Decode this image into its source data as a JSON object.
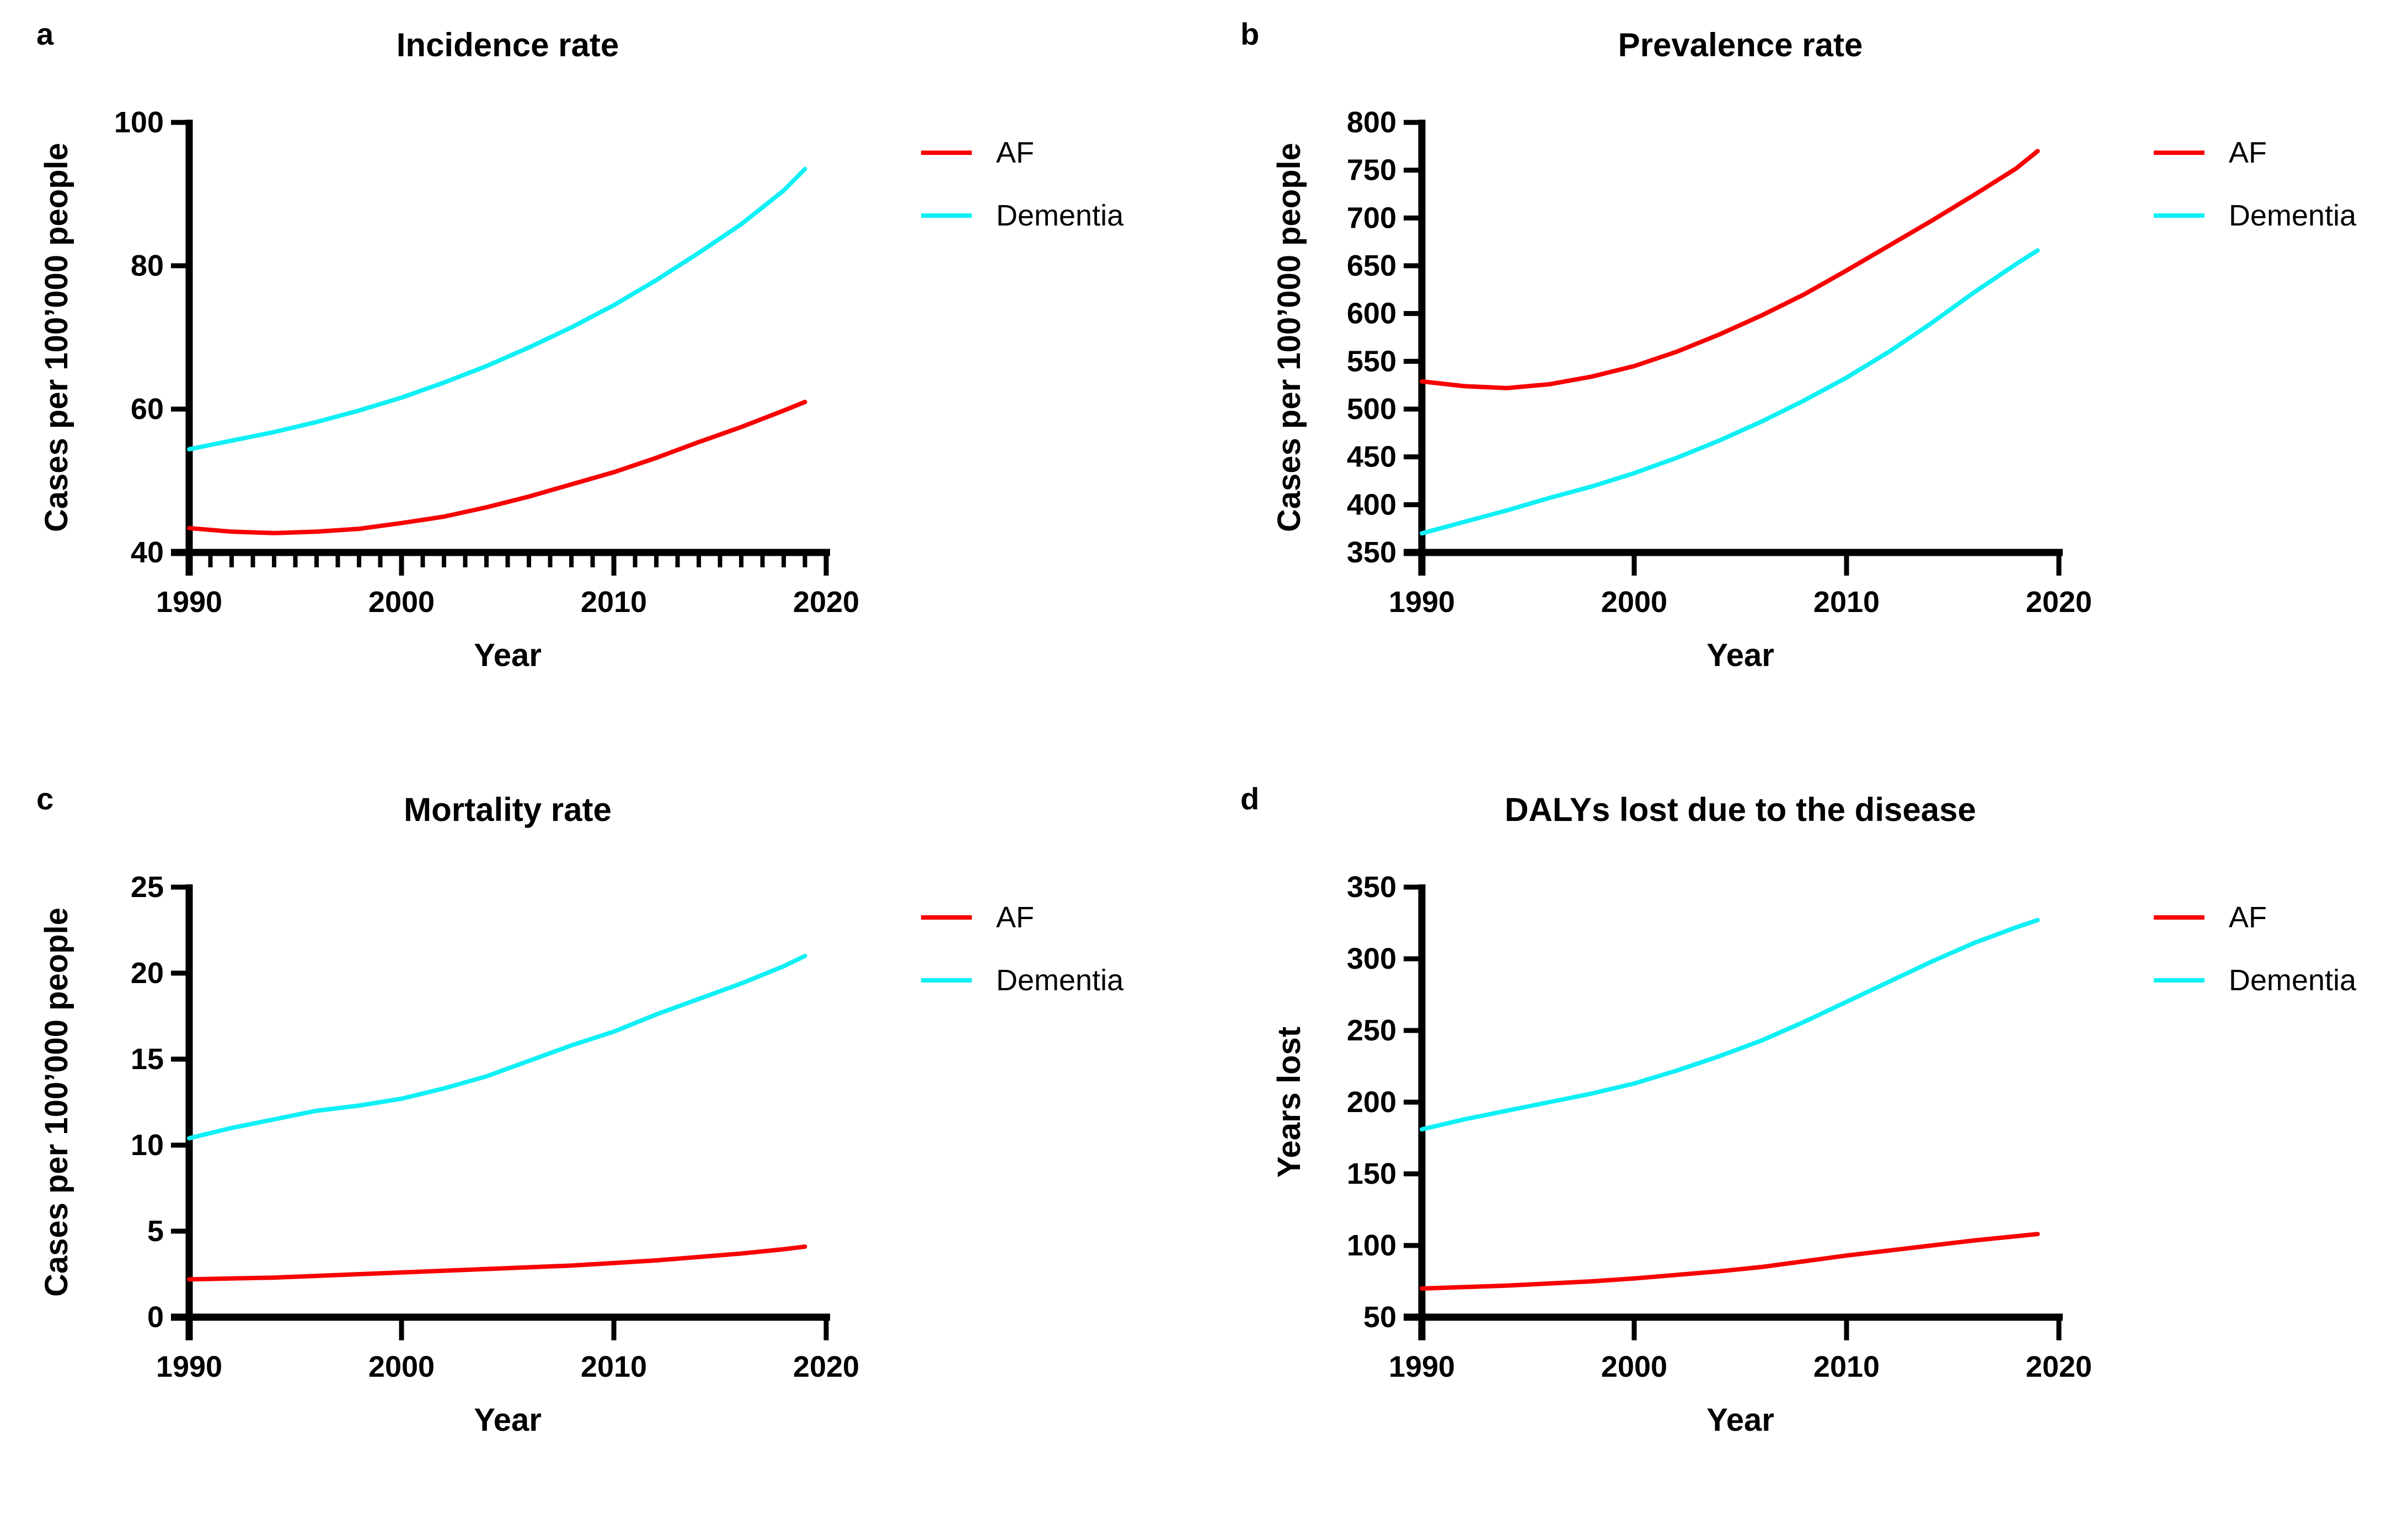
{
  "colors": {
    "af": "#f80000",
    "dementia": "#0ff0f5",
    "axis": "#000000",
    "text": "#000000",
    "background": "#ffffff"
  },
  "chart_data": [
    {
      "type": "line",
      "panel_label": "a",
      "title": "Incidence rate",
      "xlabel": "Year",
      "ylabel": "Cases per 100’000 people",
      "xlim": [
        1990,
        2020
      ],
      "ylim": [
        40,
        100
      ],
      "x_ticks": [
        1990,
        2000,
        2010,
        2020
      ],
      "y_ticks": [
        40,
        60,
        80,
        100
      ],
      "x_minor_tick_interval": 1,
      "grid": false,
      "legend_position": "right",
      "x": [
        1990,
        1992,
        1994,
        1996,
        1998,
        2000,
        2002,
        2004,
        2006,
        2008,
        2010,
        2012,
        2014,
        2016,
        2018,
        2019
      ],
      "series": [
        {
          "name": "AF",
          "color": "#f80000",
          "values": [
            43.4,
            42.9,
            42.7,
            42.9,
            43.3,
            44.1,
            45.0,
            46.3,
            47.8,
            49.5,
            51.2,
            53.2,
            55.4,
            57.5,
            59.8,
            61.0
          ]
        },
        {
          "name": "Dementia",
          "color": "#0ff0f5",
          "values": [
            54.4,
            55.6,
            56.8,
            58.2,
            59.8,
            61.6,
            63.7,
            66.0,
            68.6,
            71.4,
            74.5,
            78.0,
            81.8,
            85.8,
            90.5,
            93.5
          ]
        }
      ]
    },
    {
      "type": "line",
      "panel_label": "b",
      "title": "Prevalence rate",
      "xlabel": "Year",
      "ylabel": "Cases per 100’000 people",
      "xlim": [
        1990,
        2020
      ],
      "ylim": [
        350,
        800
      ],
      "x_ticks": [
        1990,
        2000,
        2010,
        2020
      ],
      "y_ticks": [
        350,
        400,
        450,
        500,
        550,
        600,
        650,
        700,
        750,
        800
      ],
      "x_minor_tick_interval": null,
      "grid": false,
      "legend_position": "right",
      "x": [
        1990,
        1992,
        1994,
        1996,
        1998,
        2000,
        2002,
        2004,
        2006,
        2008,
        2010,
        2012,
        2014,
        2016,
        2018,
        2019
      ],
      "series": [
        {
          "name": "AF",
          "color": "#f80000",
          "values": [
            529,
            524,
            522,
            526,
            534,
            545,
            560,
            578,
            598,
            620,
            645,
            671,
            697,
            724,
            752,
            770
          ]
        },
        {
          "name": "Dementia",
          "color": "#0ff0f5",
          "values": [
            370,
            382,
            394,
            407,
            419,
            433,
            449,
            467,
            487,
            509,
            533,
            560,
            590,
            622,
            652,
            666
          ]
        }
      ]
    },
    {
      "type": "line",
      "panel_label": "c",
      "title": "Mortality rate",
      "xlabel": "Year",
      "ylabel": "Cases per 100’000 people",
      "xlim": [
        1990,
        2020
      ],
      "ylim": [
        0,
        25
      ],
      "x_ticks": [
        1990,
        2000,
        2010,
        2020
      ],
      "y_ticks": [
        0,
        5,
        10,
        15,
        20,
        25
      ],
      "x_minor_tick_interval": null,
      "grid": false,
      "legend_position": "right",
      "x": [
        1990,
        1992,
        1994,
        1996,
        1998,
        2000,
        2002,
        2004,
        2006,
        2008,
        2010,
        2012,
        2014,
        2016,
        2018,
        2019
      ],
      "series": [
        {
          "name": "AF",
          "color": "#f80000",
          "values": [
            2.2,
            2.25,
            2.3,
            2.4,
            2.5,
            2.6,
            2.7,
            2.8,
            2.9,
            3.0,
            3.15,
            3.3,
            3.5,
            3.7,
            3.95,
            4.1
          ]
        },
        {
          "name": "Dementia",
          "color": "#0ff0f5",
          "values": [
            10.4,
            11.0,
            11.5,
            12.0,
            12.3,
            12.7,
            13.3,
            14.0,
            14.9,
            15.8,
            16.6,
            17.6,
            18.5,
            19.4,
            20.4,
            21.0
          ]
        }
      ]
    },
    {
      "type": "line",
      "panel_label": "d",
      "title": "DALYs lost due to the disease",
      "xlabel": "Year",
      "ylabel": "Years lost",
      "xlim": [
        1990,
        2020
      ],
      "ylim": [
        50,
        350
      ],
      "x_ticks": [
        1990,
        2000,
        2010,
        2020
      ],
      "y_ticks": [
        50,
        100,
        150,
        200,
        250,
        300,
        350
      ],
      "x_minor_tick_interval": null,
      "grid": false,
      "legend_position": "right",
      "x": [
        1990,
        1992,
        1994,
        1996,
        1998,
        2000,
        2002,
        2004,
        2006,
        2008,
        2010,
        2012,
        2014,
        2016,
        2018,
        2019
      ],
      "series": [
        {
          "name": "AF",
          "color": "#f80000",
          "values": [
            70,
            71,
            72,
            73.5,
            75,
            77,
            79.5,
            82,
            85,
            89,
            93,
            96.5,
            100,
            103.5,
            106.5,
            108
          ]
        },
        {
          "name": "Dementia",
          "color": "#0ff0f5",
          "values": [
            181,
            188,
            194,
            200,
            206,
            213,
            222,
            232,
            243,
            256,
            270,
            284,
            298,
            311,
            322,
            327
          ]
        }
      ]
    }
  ]
}
